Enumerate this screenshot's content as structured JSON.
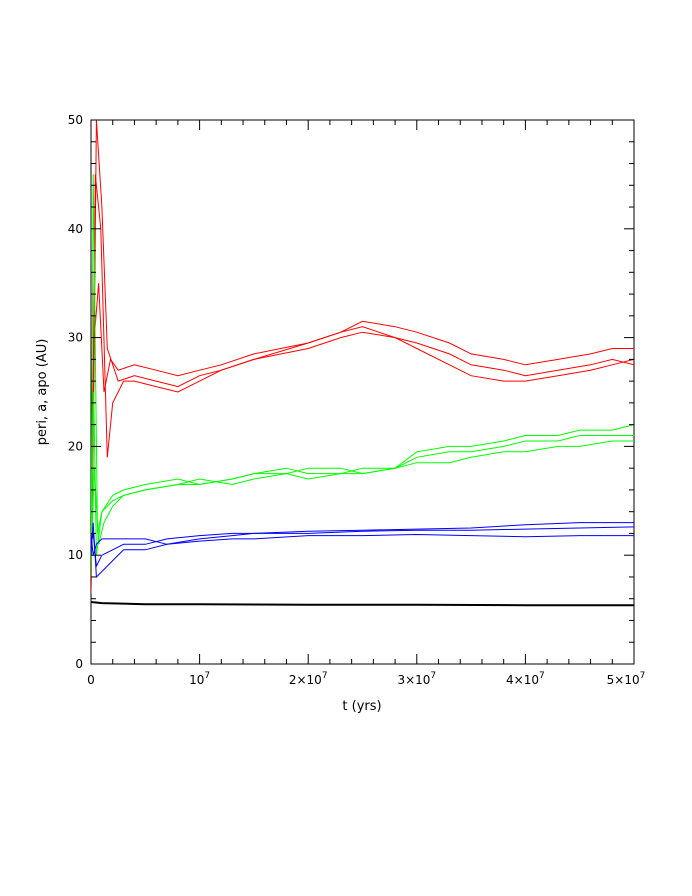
{
  "chart_data": {
    "type": "line",
    "xlabel": "t (yrs)",
    "ylabel": "peri, a, apo (AU)",
    "xlim": [
      0,
      50000000
    ],
    "ylim": [
      0,
      50
    ],
    "grid": false,
    "x_ticks": [
      {
        "value": 0,
        "base": "0",
        "exp": ""
      },
      {
        "value": 10000000,
        "base": "10",
        "exp": "7"
      },
      {
        "value": 20000000,
        "base": "2×10",
        "exp": "7"
      },
      {
        "value": 30000000,
        "base": "3×10",
        "exp": "7"
      },
      {
        "value": 40000000,
        "base": "4×10",
        "exp": "7"
      },
      {
        "value": 50000000,
        "base": "5×10",
        "exp": "7"
      }
    ],
    "y_ticks": [
      {
        "value": 0,
        "label": "0"
      },
      {
        "value": 10,
        "label": "10"
      },
      {
        "value": 20,
        "label": "20"
      },
      {
        "value": 30,
        "label": "30"
      },
      {
        "value": 40,
        "label": "40"
      },
      {
        "value": 50,
        "label": "50"
      }
    ],
    "series": [
      {
        "color": "#ff0000",
        "x": [
          0,
          200000,
          500000,
          1000000,
          1500000,
          2500000,
          4000000,
          6000000,
          8000000,
          10000000,
          12000000,
          15000000,
          20000000,
          23000000,
          25000000,
          28000000,
          30000000,
          33000000,
          35000000,
          38000000,
          40000000,
          43000000,
          46000000,
          48000000,
          50000000
        ],
        "y": [
          6.5,
          20,
          50,
          42,
          29,
          26,
          26.5,
          26,
          25.5,
          26.5,
          27,
          28,
          29.5,
          30.5,
          31,
          30,
          29,
          27.5,
          26.5,
          26,
          26,
          26.5,
          27,
          27.5,
          28
        ]
      },
      {
        "color": "#ff0000",
        "x": [
          0,
          300000,
          700000,
          1200000,
          1800000,
          2500000,
          4000000,
          6000000,
          8000000,
          10000000,
          12000000,
          15000000,
          20000000,
          23000000,
          25000000,
          28000000,
          30000000,
          33000000,
          35000000,
          38000000,
          40000000,
          43000000,
          46000000,
          48000000,
          50000000
        ],
        "y": [
          7,
          30,
          35,
          25,
          28,
          27,
          27.5,
          27,
          26.5,
          27,
          27.5,
          28.5,
          29.5,
          30.5,
          31.5,
          31,
          30.5,
          29.5,
          28.5,
          28,
          27.5,
          28,
          28.5,
          29,
          29
        ]
      },
      {
        "color": "#ff0000",
        "x": [
          0,
          400000,
          900000,
          1500000,
          2000000,
          3000000,
          4000000,
          6000000,
          8000000,
          10000000,
          12000000,
          15000000,
          20000000,
          23000000,
          25000000,
          28000000,
          30000000,
          33000000,
          35000000,
          38000000,
          40000000,
          43000000,
          46000000,
          48000000,
          50000000
        ],
        "y": [
          6.5,
          45,
          40,
          19,
          24,
          26,
          26,
          25.5,
          25,
          26,
          27,
          28,
          29,
          30,
          30.5,
          30,
          29.5,
          28.5,
          27.5,
          27,
          26.5,
          27,
          27.5,
          28,
          27.5
        ]
      },
      {
        "color": "#00ff00",
        "x": [
          0,
          200000,
          600000,
          1000000,
          2000000,
          3000000,
          5000000,
          8000000,
          10000000,
          13000000,
          15000000,
          18000000,
          20000000,
          23000000,
          25000000,
          28000000,
          30000000,
          33000000,
          35000000,
          38000000,
          40000000,
          43000000,
          45000000,
          48000000,
          50000000
        ],
        "y": [
          8,
          45,
          12,
          14,
          15.5,
          16,
          16.5,
          17,
          16.5,
          17,
          17.5,
          18,
          17.5,
          17.5,
          18,
          18,
          19,
          19.5,
          19.5,
          20,
          20.5,
          20.5,
          21,
          21,
          21
        ]
      },
      {
        "color": "#00ff00",
        "x": [
          0,
          300000,
          700000,
          1200000,
          2000000,
          3000000,
          5000000,
          8000000,
          10000000,
          13000000,
          15000000,
          18000000,
          20000000,
          23000000,
          25000000,
          28000000,
          30000000,
          33000000,
          35000000,
          38000000,
          40000000,
          43000000,
          45000000,
          48000000,
          50000000
        ],
        "y": [
          9,
          18,
          11,
          13,
          14.5,
          15.5,
          16,
          16.5,
          17,
          16.5,
          17,
          17.5,
          17,
          17.5,
          17.5,
          18,
          18.5,
          18.5,
          19,
          19.5,
          19.5,
          20,
          20,
          20.5,
          20.5
        ]
      },
      {
        "color": "#00ff00",
        "x": [
          0,
          250000,
          500000,
          1000000,
          2000000,
          3000000,
          5000000,
          8000000,
          10000000,
          13000000,
          15000000,
          18000000,
          20000000,
          23000000,
          25000000,
          28000000,
          30000000,
          33000000,
          35000000,
          38000000,
          40000000,
          43000000,
          45000000,
          48000000,
          50000000
        ],
        "y": [
          8.5,
          25,
          10,
          14,
          15,
          15.5,
          16,
          16.5,
          16.5,
          17,
          17.5,
          17.5,
          18,
          18,
          17.5,
          18,
          19.5,
          20,
          20,
          20.5,
          21,
          21,
          21.5,
          21.5,
          22
        ]
      },
      {
        "color": "#0000ff",
        "x": [
          0,
          200000,
          500000,
          1000000,
          2000000,
          3000000,
          5000000,
          7000000,
          10000000,
          13000000,
          15000000,
          20000000,
          25000000,
          30000000,
          35000000,
          40000000,
          45000000,
          50000000
        ],
        "y": [
          12,
          10,
          11,
          11.5,
          11.5,
          11.5,
          11.5,
          11,
          11.5,
          11.8,
          12,
          12.2,
          12.3,
          12.4,
          12.5,
          12.8,
          13,
          13
        ]
      },
      {
        "color": "#0000ff",
        "x": [
          0,
          200000,
          500000,
          1000000,
          2000000,
          3000000,
          5000000,
          7000000,
          10000000,
          13000000,
          15000000,
          20000000,
          25000000,
          30000000,
          35000000,
          40000000,
          45000000,
          50000000
        ],
        "y": [
          11,
          12,
          9,
          10,
          10.5,
          11,
          11,
          11.5,
          11.8,
          12,
          12,
          12,
          12.2,
          12.3,
          12.3,
          12.4,
          12.5,
          12.6
        ]
      },
      {
        "color": "#0000ff",
        "x": [
          0,
          200000,
          500000,
          1000000,
          2000000,
          3000000,
          5000000,
          7000000,
          10000000,
          13000000,
          15000000,
          20000000,
          25000000,
          30000000,
          35000000,
          40000000,
          45000000,
          50000000
        ],
        "y": [
          10,
          13,
          8,
          8.5,
          9.5,
          10.5,
          10.5,
          11,
          11.3,
          11.5,
          11.5,
          11.8,
          11.8,
          11.9,
          11.8,
          11.7,
          11.8,
          11.8
        ]
      },
      {
        "color": "#000000",
        "x": [
          0,
          1000000,
          5000000,
          10000000,
          20000000,
          30000000,
          40000000,
          50000000
        ],
        "y": [
          5.7,
          5.6,
          5.5,
          5.5,
          5.45,
          5.45,
          5.4,
          5.4
        ]
      }
    ]
  }
}
